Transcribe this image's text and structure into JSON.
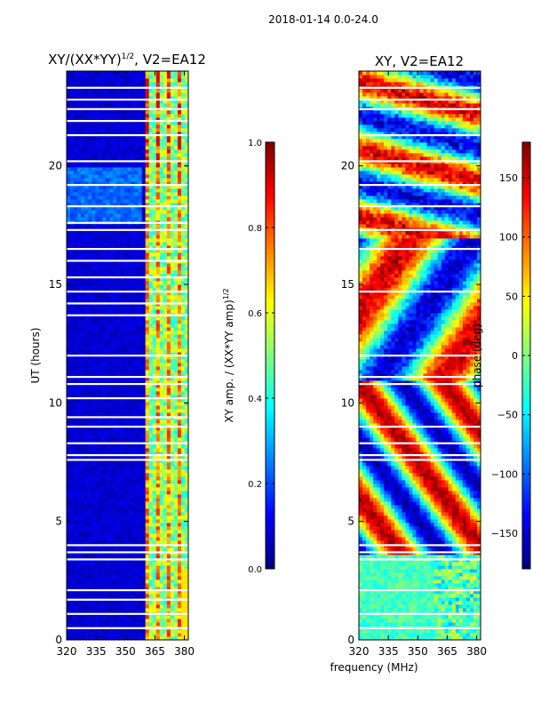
{
  "figure": {
    "suptitle": "2018-01-14 0.0-24.0",
    "shared_xlabel": "frequency (MHz)"
  },
  "chart_data": [
    {
      "type": "heatmap",
      "title_main": "XY/(XX*YY)",
      "title_sup": "1/2",
      "title_tail": ", V2=EA12",
      "xlabel": "",
      "ylabel": "UT (hours)",
      "xlim": [
        320,
        382
      ],
      "ylim": [
        0,
        24
      ],
      "xticks": [
        320,
        335,
        350,
        365,
        380
      ],
      "yticks": [
        0,
        5,
        10,
        15,
        20
      ],
      "colorbar": {
        "label_main": "XY amp. / (XX*YY amp)",
        "label_sup": "1/2",
        "range": [
          0.0,
          1.0
        ],
        "ticks": [
          "0.0",
          "0.2",
          "0.4",
          "0.6",
          "0.8",
          "1.0"
        ],
        "colormap": "jet"
      },
      "band_freq_start": 360,
      "blank_rows_ut": [
        0.5,
        1.1,
        1.7,
        2.1,
        3.4,
        3.7,
        4.0,
        7.6,
        7.8,
        8.3,
        9.0,
        9.4,
        10.2,
        10.8,
        11.1,
        12.0,
        13.7,
        14.2,
        14.7,
        15.3,
        16.0,
        16.5,
        17.3,
        17.6,
        18.3,
        19.2,
        20.2,
        21.3,
        21.9,
        22.4,
        22.8,
        23.3
      ]
    },
    {
      "type": "heatmap",
      "title": "XY, V2=EA12",
      "xlabel": "",
      "ylabel": "",
      "xlim": [
        320,
        382
      ],
      "ylim": [
        0,
        24
      ],
      "xticks": [
        320,
        335,
        350,
        365,
        380
      ],
      "yticks": [
        0,
        5,
        10,
        15,
        20
      ],
      "colorbar": {
        "label": "phase (deg)",
        "range": [
          -180,
          180
        ],
        "ticks": [
          "−150",
          "−100",
          "−50",
          "0",
          "50",
          "100",
          "150"
        ],
        "colormap": "jet"
      },
      "blank_rows_ut": [
        0.5,
        1.1,
        2.1,
        3.4,
        3.7,
        4.0,
        7.6,
        7.8,
        8.3,
        9.0,
        10.8,
        11.1,
        12.0,
        14.7,
        16.5,
        17.3,
        18.3,
        19.2,
        20.2,
        21.3,
        22.4,
        22.8,
        23.3
      ]
    }
  ]
}
